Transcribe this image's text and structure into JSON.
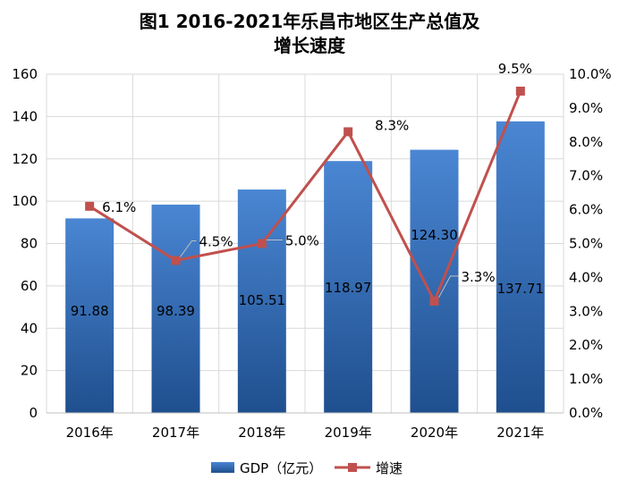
{
  "colors": {
    "bar_top": "#4a86d3",
    "bar_bottom": "#1f4f8e",
    "line": "#c0504d",
    "grid": "#d9d9d9"
  },
  "chart_data": {
    "type": "bar+line",
    "title_line1": "图1  2016-2021年乐昌市地区生产总值及",
    "title_line2": "增长速度",
    "categories": [
      "2016年",
      "2017年",
      "2018年",
      "2019年",
      "2020年",
      "2021年"
    ],
    "series": [
      {
        "name": "GDP（亿元）",
        "type": "bar",
        "axis": "left",
        "values": [
          91.88,
          98.39,
          105.51,
          118.97,
          124.3,
          137.71
        ],
        "labels": [
          "91.88",
          "98.39",
          "105.51",
          "118.97",
          "124.30",
          "137.71"
        ]
      },
      {
        "name": "增速",
        "type": "line",
        "axis": "right",
        "values": [
          6.1,
          4.5,
          5.0,
          8.3,
          3.3,
          9.5
        ],
        "labels": [
          "6.1%",
          "4.5%",
          "5.0%",
          "8.3%",
          "3.3%",
          "9.5%"
        ]
      }
    ],
    "y_left": {
      "min": 0,
      "max": 160,
      "step": 20,
      "ticks": [
        "0",
        "20",
        "40",
        "60",
        "80",
        "100",
        "120",
        "140",
        "160"
      ]
    },
    "y_right": {
      "min": 0,
      "max": 10,
      "step": 1,
      "ticks": [
        "0.0%",
        "1.0%",
        "2.0%",
        "3.0%",
        "4.0%",
        "5.0%",
        "6.0%",
        "7.0%",
        "8.0%",
        "9.0%",
        "10.0%"
      ]
    },
    "grid": true,
    "legend_position": "bottom"
  }
}
